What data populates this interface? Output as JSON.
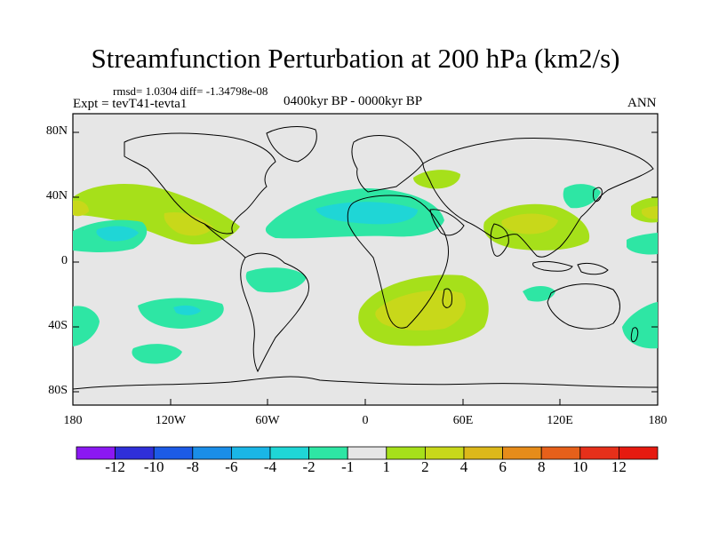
{
  "title": "Streamfunction Perturbation at 200 hPa (km2/s)",
  "stats": "rmsd= 1.0304 diff= -1.34798e-08",
  "experiment": "Expt = tevT41-tevta1",
  "period": "0400kyr BP - 0000kyr BP",
  "season": "ANN",
  "lat_labels": [
    "80N",
    "40N",
    "0",
    "40S",
    "80S"
  ],
  "lon_labels": [
    "180",
    "120W",
    "60W",
    "0",
    "60E",
    "120E",
    "180"
  ],
  "colorbar": {
    "labels": [
      "-12",
      "-10",
      "-8",
      "-6",
      "-4",
      "-2",
      "-1",
      "1",
      "2",
      "4",
      "6",
      "8",
      "10",
      "12"
    ],
    "colors": [
      "#8b18f2",
      "#2f2fd9",
      "#1c5be6",
      "#1a8ee8",
      "#1ab6e6",
      "#1fd6d6",
      "#2ee6a4",
      "#e6e6e6",
      "#a6e01a",
      "#c8d81a",
      "#dcb81a",
      "#e68c1a",
      "#e6601a",
      "#e6301a",
      "#e61a10"
    ]
  },
  "map_colors": {
    "background": "#e6e6e6",
    "coast": "#000000"
  }
}
